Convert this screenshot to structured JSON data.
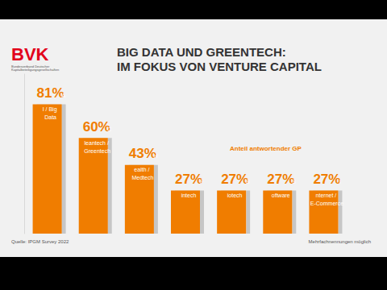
{
  "chart_data": {
    "type": "bar",
    "title": "BIG DATA UND GREENTECH:\nIM FOKUS VON VENTURE CAPITAL",
    "logo": "BVK",
    "logo_subtitle": "Bundesverband Deutscher Kapitalbeteiligungsgesellschaften",
    "categories": [
      "AI / Big Data",
      "Cleantech / Greentech",
      "Health / Medtech",
      "Fintech",
      "Biotech",
      "Software",
      "Internet / E-Commerce"
    ],
    "values": [
      81,
      60,
      43,
      27,
      27,
      27,
      27
    ],
    "value_labels": [
      "81%",
      "60%",
      "43%",
      "27%",
      "27%",
      "27%",
      "27%"
    ],
    "color": "#f07d00",
    "ylim": [
      0,
      100
    ],
    "data_labels": true,
    "tick_labels": false,
    "grid": false,
    "annotations": [
      "Anteil antwortender GP"
    ],
    "source": "Quelle: IPGM Survey 2022",
    "note": "Mehrfachnennungen möglich"
  }
}
